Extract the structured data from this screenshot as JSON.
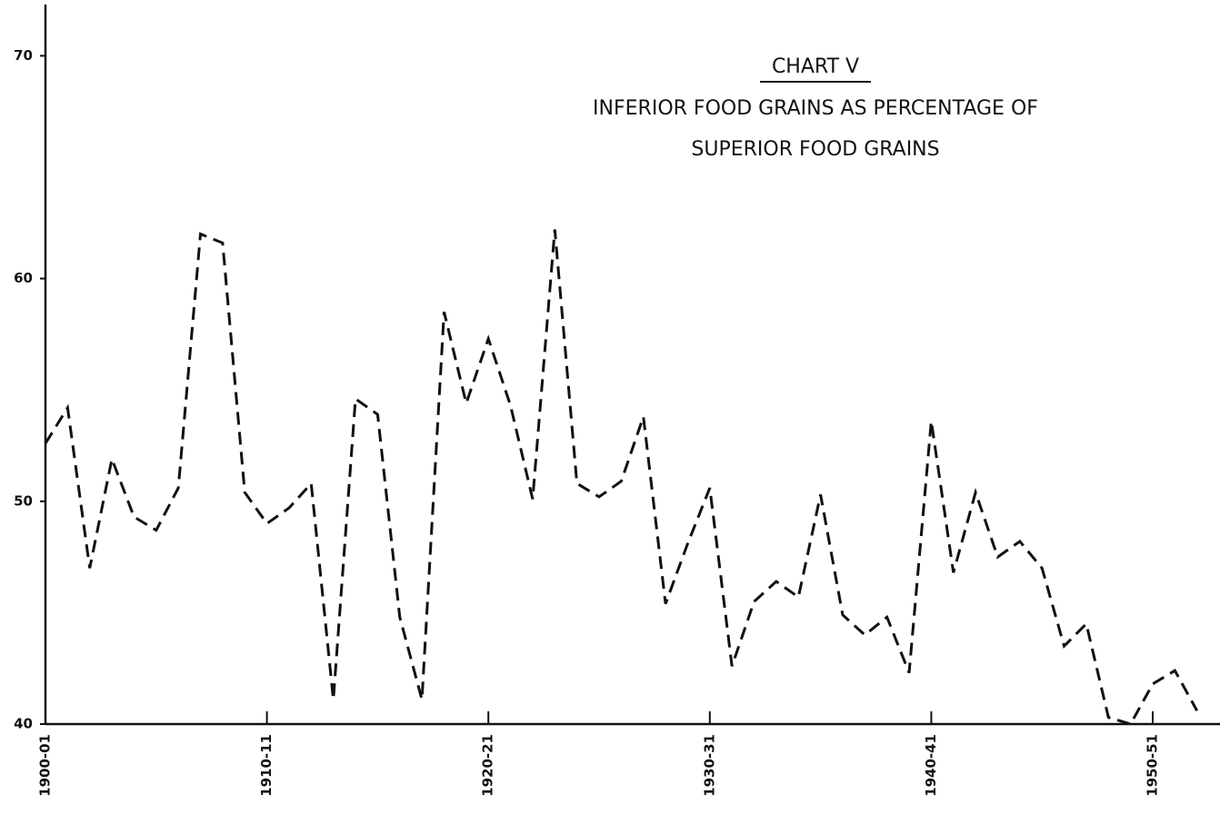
{
  "chart_data": {
    "type": "line",
    "title": "CHART V",
    "subtitle": [
      "INFERIOR FOOD GRAINS AS PERCENTAGE OF",
      "SUPERIOR FOOD GRAINS"
    ],
    "categories": [
      "1900-01",
      null,
      null,
      null,
      null,
      null,
      null,
      null,
      null,
      null,
      "1910-11",
      null,
      null,
      null,
      null,
      null,
      null,
      null,
      null,
      null,
      "1920-21",
      null,
      null,
      null,
      null,
      null,
      null,
      null,
      null,
      null,
      "1930-31",
      null,
      null,
      null,
      null,
      null,
      null,
      null,
      null,
      null,
      "1940-41",
      null,
      null,
      null,
      null,
      null,
      null,
      null,
      null,
      null,
      "1950-51",
      null,
      null
    ],
    "series": [
      {
        "color": "#111111",
        "values": [
          52.6,
          54.2,
          47.0,
          51.9,
          49.3,
          48.7,
          50.6,
          62.0,
          61.6,
          50.4,
          49.0,
          49.7,
          50.8,
          41.1,
          54.6,
          53.9,
          44.8,
          41.1,
          58.5,
          54.4,
          57.3,
          54.3,
          50.1,
          62.2,
          50.8,
          50.2,
          50.9,
          53.8,
          45.4,
          48.1,
          50.6,
          42.6,
          45.5,
          46.4,
          45.7,
          50.3,
          44.9,
          44.0,
          44.8,
          42.3,
          53.6,
          46.8,
          50.4,
          47.5,
          48.2,
          47.0,
          43.5,
          44.5,
          40.3,
          40.0,
          41.8,
          42.4,
          40.6
        ]
      }
    ],
    "ylim": [
      40,
      72.3
    ],
    "yticks": [
      40,
      50,
      60,
      70
    ],
    "dashed": true
  }
}
